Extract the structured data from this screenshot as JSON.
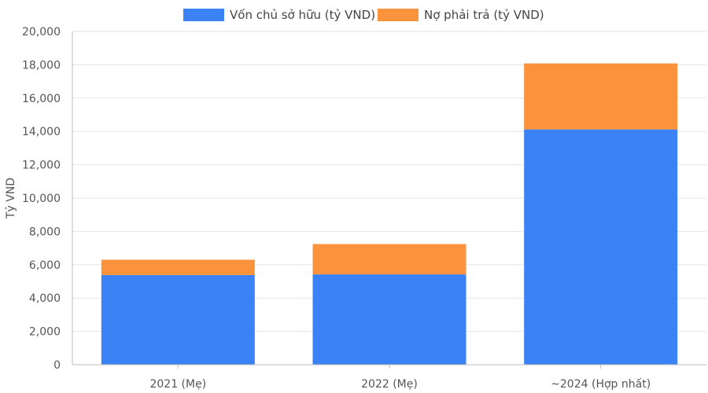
{
  "chart_data": {
    "type": "bar",
    "stacked": true,
    "categories": [
      "2021 (Mẹ)",
      "2022 (Mẹ)",
      "~2024 (Hợp nhất)"
    ],
    "series": [
      {
        "name": "Vốn chủ sở hữu (tỷ VND)",
        "color": "#3b82f6",
        "values": [
          5380,
          5420,
          14120
        ]
      },
      {
        "name": "Nợ phải trả (tỷ VND)",
        "color": "#fb923c",
        "values": [
          920,
          1820,
          3960
        ]
      }
    ],
    "title": "",
    "xlabel": "",
    "ylabel": "Tỷ VND",
    "ylim": [
      0,
      20000
    ],
    "yticks": [
      0,
      2000,
      4000,
      6000,
      8000,
      10000,
      12000,
      14000,
      16000,
      18000,
      20000
    ],
    "ytick_labels": [
      "0",
      "2,000",
      "4,000",
      "6,000",
      "8,000",
      "10,000",
      "12,000",
      "14,000",
      "16,000",
      "18,000",
      "20,000"
    ],
    "grid": true,
    "legend_position": "top-center"
  }
}
